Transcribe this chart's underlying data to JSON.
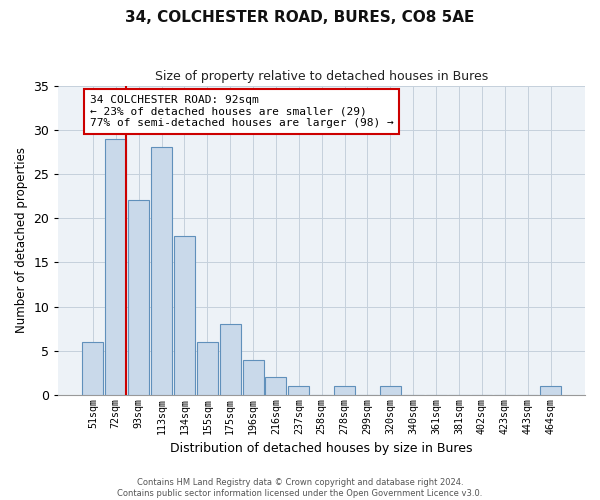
{
  "title": "34, COLCHESTER ROAD, BURES, CO8 5AE",
  "subtitle": "Size of property relative to detached houses in Bures",
  "xlabel": "Distribution of detached houses by size in Bures",
  "ylabel": "Number of detached properties",
  "bin_labels": [
    "51sqm",
    "72sqm",
    "93sqm",
    "113sqm",
    "134sqm",
    "155sqm",
    "175sqm",
    "196sqm",
    "216sqm",
    "237sqm",
    "258sqm",
    "278sqm",
    "299sqm",
    "320sqm",
    "340sqm",
    "361sqm",
    "381sqm",
    "402sqm",
    "423sqm",
    "443sqm",
    "464sqm"
  ],
  "bar_values": [
    6,
    29,
    22,
    28,
    18,
    6,
    8,
    4,
    2,
    1,
    0,
    1,
    0,
    1,
    0,
    0,
    0,
    0,
    0,
    0,
    1
  ],
  "bar_color": "#c9d9ea",
  "bar_edge_color": "#6090bb",
  "ylim": [
    0,
    35
  ],
  "yticks": [
    0,
    5,
    10,
    15,
    20,
    25,
    30,
    35
  ],
  "property_line_color": "#cc0000",
  "annotation_text": "34 COLCHESTER ROAD: 92sqm\n← 23% of detached houses are smaller (29)\n77% of semi-detached houses are larger (98) →",
  "annotation_box_color": "#ffffff",
  "annotation_box_edge_color": "#cc0000",
  "footer_text": "Contains HM Land Registry data © Crown copyright and database right 2024.\nContains public sector information licensed under the Open Government Licence v3.0.",
  "background_color": "#edf2f7",
  "grid_color": "#c5d0dc"
}
